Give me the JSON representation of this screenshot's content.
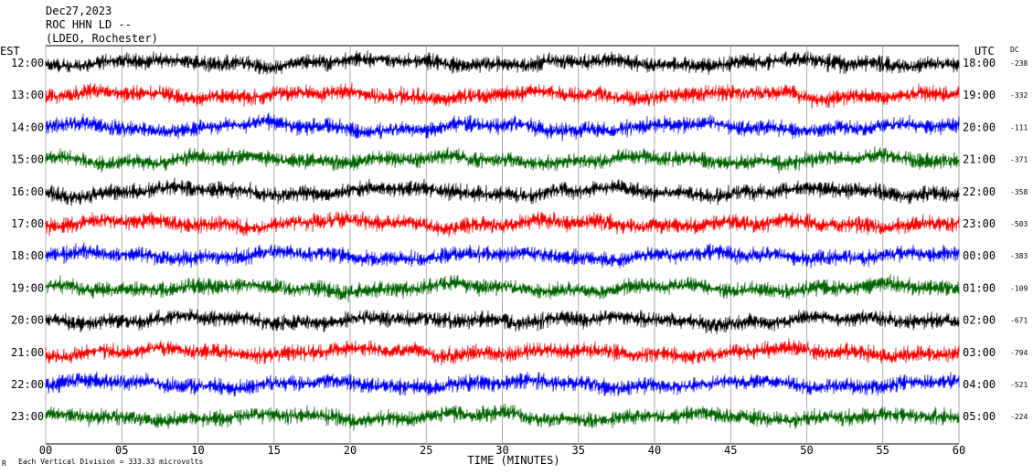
{
  "header": {
    "date": "Dec27,2023",
    "station": "ROC HHN LD --",
    "network": "(LDEO, Rochester)"
  },
  "labels": {
    "left_zone": "EST",
    "right_zone": "UTC",
    "dc_header": "DC",
    "x_axis": "TIME (MINUTES)",
    "scale_note": "Each Vertical Division =  333.33 microvolts",
    "corner_mark": "R"
  },
  "chart_data": {
    "type": "line",
    "title": "",
    "xlabel": "TIME (MINUTES)",
    "ylabel": "",
    "xlim": [
      0,
      60
    ],
    "x_ticks": [
      "00",
      "05",
      "10",
      "15",
      "20",
      "25",
      "30",
      "35",
      "40",
      "45",
      "50",
      "55",
      "60"
    ],
    "grid": true,
    "vertical_division_microvolts": 333.33,
    "line_colors": [
      "#000000",
      "#ff0000",
      "#0000ff",
      "#006400"
    ],
    "rows": [
      {
        "est": "12:00",
        "utc": "18:00",
        "dc": "-238"
      },
      {
        "est": "13:00",
        "utc": "19:00",
        "dc": "-332"
      },
      {
        "est": "14:00",
        "utc": "20:00",
        "dc": "-111"
      },
      {
        "est": "15:00",
        "utc": "21:00",
        "dc": "-371"
      },
      {
        "est": "16:00",
        "utc": "22:00",
        "dc": "-358"
      },
      {
        "est": "17:00",
        "utc": "23:00",
        "dc": "-503"
      },
      {
        "est": "18:00",
        "utc": "00:00",
        "dc": "-383"
      },
      {
        "est": "19:00",
        "utc": "01:00",
        "dc": "-109"
      },
      {
        "est": "20:00",
        "utc": "02:00",
        "dc": "-671"
      },
      {
        "est": "21:00",
        "utc": "03:00",
        "dc": "-794"
      },
      {
        "est": "22:00",
        "utc": "04:00",
        "dc": "-521"
      },
      {
        "est": "23:00",
        "utc": "05:00",
        "dc": "-224"
      }
    ]
  }
}
